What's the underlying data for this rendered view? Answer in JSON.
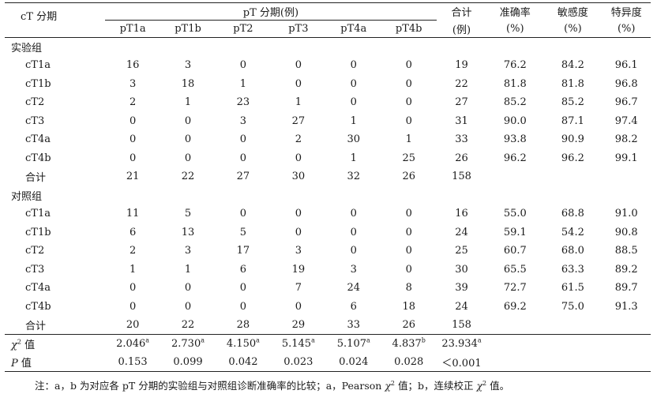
{
  "header": {
    "ct_stage": "cT 分期",
    "pt_stage": "pT 分期(例)",
    "pt_cols": [
      "pT1a",
      "pT1b",
      "pT2",
      "pT3",
      "pT4a",
      "pT4b"
    ],
    "total_line1": "合计",
    "total_line2": "(例)",
    "accuracy_line1": "准确率",
    "accuracy_line2": "(%)",
    "sensitivity_line1": "敏感度",
    "sensitivity_line2": "(%)",
    "specificity_line1": "特异度",
    "specificity_line2": "(%)"
  },
  "groups": [
    {
      "label": "实验组",
      "rows": [
        {
          "ct": "cT1a",
          "vals": [
            "16",
            "3",
            "0",
            "0",
            "0",
            "0"
          ],
          "total": "19",
          "acc": "76.2",
          "sens": "84.2",
          "spec": "96.1"
        },
        {
          "ct": "cT1b",
          "vals": [
            "3",
            "18",
            "1",
            "0",
            "0",
            "0"
          ],
          "total": "22",
          "acc": "81.8",
          "sens": "81.8",
          "spec": "96.8"
        },
        {
          "ct": "cT2",
          "vals": [
            "2",
            "1",
            "23",
            "1",
            "0",
            "0"
          ],
          "total": "27",
          "acc": "85.2",
          "sens": "85.2",
          "spec": "96.7"
        },
        {
          "ct": "cT3",
          "vals": [
            "0",
            "0",
            "3",
            "27",
            "1",
            "0"
          ],
          "total": "31",
          "acc": "90.0",
          "sens": "87.1",
          "spec": "97.4"
        },
        {
          "ct": "cT4a",
          "vals": [
            "0",
            "0",
            "0",
            "2",
            "30",
            "1"
          ],
          "total": "33",
          "acc": "93.8",
          "sens": "90.9",
          "spec": "98.2"
        },
        {
          "ct": "cT4b",
          "vals": [
            "0",
            "0",
            "0",
            "0",
            "1",
            "25"
          ],
          "total": "26",
          "acc": "96.2",
          "sens": "96.2",
          "spec": "99.1"
        }
      ],
      "sum": {
        "label": "合计",
        "vals": [
          "21",
          "22",
          "27",
          "30",
          "32",
          "26"
        ],
        "total": "158"
      }
    },
    {
      "label": "对照组",
      "rows": [
        {
          "ct": "cT1a",
          "vals": [
            "11",
            "5",
            "0",
            "0",
            "0",
            "0"
          ],
          "total": "16",
          "acc": "55.0",
          "sens": "68.8",
          "spec": "91.0"
        },
        {
          "ct": "cT1b",
          "vals": [
            "6",
            "13",
            "5",
            "0",
            "0",
            "0"
          ],
          "total": "24",
          "acc": "59.1",
          "sens": "54.2",
          "spec": "90.8"
        },
        {
          "ct": "cT2",
          "vals": [
            "2",
            "3",
            "17",
            "3",
            "0",
            "0"
          ],
          "total": "25",
          "acc": "60.7",
          "sens": "68.0",
          "spec": "88.5"
        },
        {
          "ct": "cT3",
          "vals": [
            "1",
            "1",
            "6",
            "19",
            "3",
            "0"
          ],
          "total": "30",
          "acc": "65.5",
          "sens": "63.3",
          "spec": "89.2"
        },
        {
          "ct": "cT4a",
          "vals": [
            "0",
            "0",
            "0",
            "7",
            "24",
            "8"
          ],
          "total": "39",
          "acc": "72.7",
          "sens": "61.5",
          "spec": "89.7"
        },
        {
          "ct": "cT4b",
          "vals": [
            "0",
            "0",
            "0",
            "0",
            "6",
            "18"
          ],
          "total": "24",
          "acc": "69.2",
          "sens": "75.0",
          "spec": "91.3"
        }
      ],
      "sum": {
        "label": "合计",
        "vals": [
          "20",
          "22",
          "28",
          "29",
          "33",
          "26"
        ],
        "total": "158"
      }
    }
  ],
  "chi_row": {
    "symbol": "χ",
    "exp": "2",
    "suffix": " 值",
    "vals": [
      "2.046",
      "2.730",
      "4.150",
      "5.145",
      "5.107",
      "4.837"
    ],
    "sups": [
      "a",
      "a",
      "a",
      "a",
      "a",
      "b"
    ],
    "total": "23.934",
    "total_sup": "a"
  },
  "p_row": {
    "symbol": "P",
    "suffix": " 值",
    "vals": [
      "0.153",
      "0.099",
      "0.042",
      "0.023",
      "0.024",
      "0.028"
    ],
    "total": "＜0.001"
  },
  "footnote": {
    "part1": "注：a，b 为对应各 pT 分期的实验组与对照组诊断准确率的比较；a，Pearson ",
    "chi1": "χ",
    "exp1": "2",
    "part2": " 值；b，连续校正 ",
    "chi2": "χ",
    "exp2": "2",
    "part3": " 值。"
  }
}
